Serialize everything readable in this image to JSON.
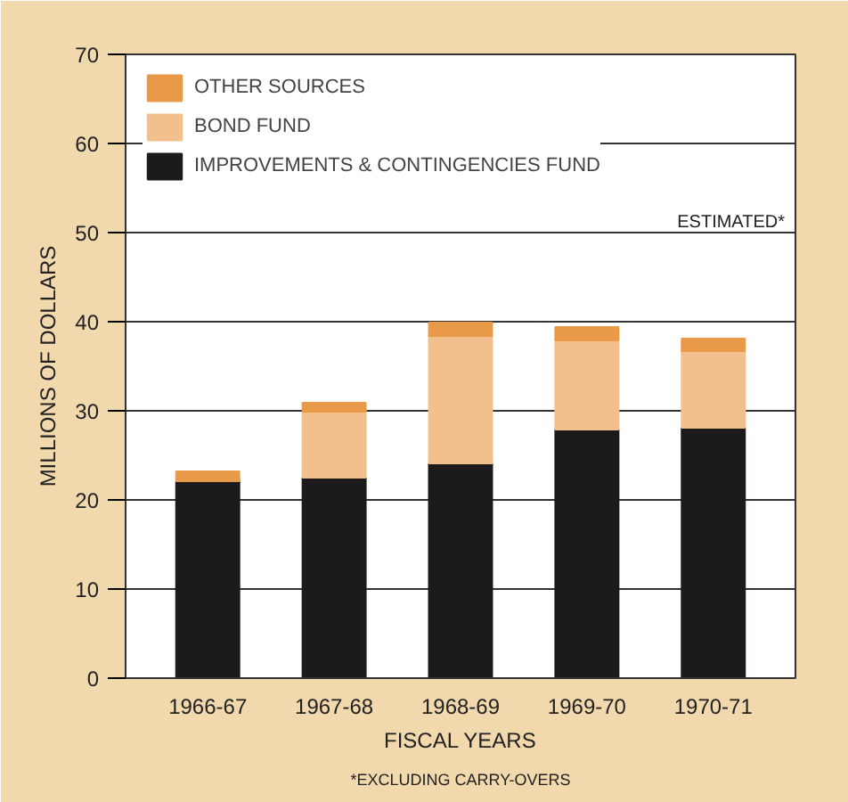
{
  "chart_data": {
    "type": "bar",
    "stacked": true,
    "xlabel": "FISCAL YEARS",
    "ylabel": "MILLIONS OF DOLLARS",
    "categories": [
      "1966-67",
      "1967-68",
      "1968-69",
      "1969-70",
      "1970-71"
    ],
    "series": [
      {
        "name": "IMPROVEMENTS & CONTINGENCIES FUND",
        "color": "#1c1a1a",
        "values": [
          22.1,
          22.5,
          24.1,
          27.9,
          28.1
        ]
      },
      {
        "name": "BOND FUND",
        "color": "#f2c08c",
        "values": [
          0,
          7.4,
          14.3,
          10.0,
          8.6
        ]
      },
      {
        "name": "OTHER SOURCES",
        "color": "#e99a48",
        "values": [
          1.1,
          1.0,
          1.5,
          1.5,
          1.4
        ]
      }
    ],
    "ylim": [
      0,
      70
    ],
    "yticks": [
      0,
      10,
      20,
      30,
      40,
      50,
      60,
      70
    ],
    "grid": "y",
    "legend": "top left",
    "annotations": [
      "ESTIMATED*",
      "*EXCLUDING CARRY-OVERS"
    ]
  }
}
